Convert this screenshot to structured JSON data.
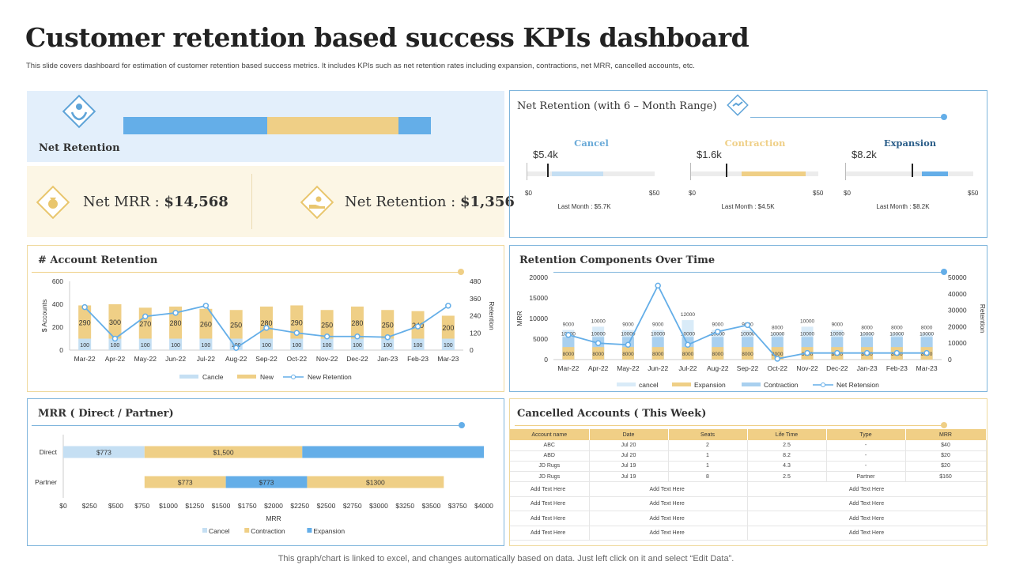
{
  "page": {
    "title": "Customer retention based success KPIs dashboard",
    "subtitle": "This slide covers dashboard for estimation of customer retention based success metrics. It includes KPIs  such as net retention rates including expansion, contractions, net MRR,  cancelled accounts, etc.",
    "footer": "This graph/chart is linked to excel,  and changes automatically based on data. Just left click on it and select “Edit Data”."
  },
  "colors": {
    "blue": "#64aee8",
    "gold": "#efcf86",
    "lightblue": "#c5dff3",
    "panel_blue": "#e3effb",
    "panel_gold": "#fcf6e5",
    "border_blue": "#7fb5dc",
    "border_gold": "#efd99d"
  },
  "net_retention_bar": {
    "label": "Net Retention",
    "segments": [
      {
        "value": 0.44,
        "color": "blue"
      },
      {
        "value": 0.4,
        "color": "gold"
      },
      {
        "value": 0.1,
        "color": "blue"
      }
    ]
  },
  "kpis": {
    "net_mrr_label": "Net MRR :",
    "net_mrr_value": "$14,568",
    "net_ret_label": "Net Retention :",
    "net_ret_value": "$1,356"
  },
  "net_retention_range": {
    "title": "Net Retention (with 6 – Month Range)",
    "gauges": [
      {
        "label": "Cancel",
        "value": "$5.4k",
        "min": "$0",
        "max": "$50",
        "last": "Last Month  : $5.7K",
        "color": "#6aaad8",
        "marker": 0.16,
        "bar_start": 0.2,
        "bar_end": 0.6,
        "bar_color": "#c5dff3"
      },
      {
        "label": "Contraction",
        "value": "$1.6k",
        "min": "$0",
        "max": "$50",
        "last": "Last Month  : $4.5K",
        "color": "#efcf86",
        "marker": 0.28,
        "bar_start": 0.4,
        "bar_end": 0.9,
        "bar_color": "#efcf86"
      },
      {
        "label": "Expansion",
        "value": "$8.2k",
        "min": "$0",
        "max": "$50",
        "last": "Last Month  : $8.2K",
        "color": "#2c5f8a",
        "marker": 0.52,
        "bar_start": 0.6,
        "bar_end": 0.8,
        "bar_color": "#64aee8"
      }
    ]
  },
  "chart_data": [
    {
      "id": "account_retention",
      "type": "bar",
      "title": "# Account Retention",
      "categories": [
        "Mar-22",
        "Apr-22",
        "May-22",
        "Jun-22",
        "Jul-22",
        "Aug-22",
        "Sep-22",
        "Oct-22",
        "Nov-22",
        "Dec-22",
        "Jan-23",
        "Feb-23",
        "Mar-23"
      ],
      "series": [
        {
          "name": "Cancle",
          "values": [
            100,
            100,
            100,
            100,
            100,
            100,
            100,
            100,
            100,
            100,
            100,
            100,
            100
          ],
          "color": "#c5dff3"
        },
        {
          "name": "New",
          "values": [
            290,
            300,
            270,
            280,
            260,
            250,
            280,
            290,
            250,
            280,
            250,
            240,
            200
          ],
          "color": "#efcf86"
        },
        {
          "name": "New Retention",
          "values": [
            300,
            80,
            235,
            260,
            310,
            15,
            155,
            120,
            95,
            95,
            90,
            165,
            310
          ],
          "color": "#64aee8",
          "axis": "right"
        }
      ],
      "ylabel": "$ Accounts",
      "ylabel_right": "Retention",
      "ylim": [
        0,
        600
      ],
      "yticks": [
        0,
        200,
        400,
        600
      ],
      "ylim_right": [
        0,
        480
      ],
      "yticks_right": [
        0,
        120,
        240,
        360,
        480
      ]
    },
    {
      "id": "retention_components",
      "type": "bar",
      "title": "Retention Components Over Time",
      "categories": [
        "Mar-22",
        "Apr-22",
        "May-22",
        "Jun-22",
        "Jul-22",
        "Aug-22",
        "Sep-22",
        "Oct-22",
        "Nov-22",
        "Dec-22",
        "Jan-23",
        "Feb-23",
        "Mar-23"
      ],
      "series": [
        {
          "name": "cancel",
          "values": [
            9000,
            10000,
            9000,
            9000,
            12000,
            9000,
            9000,
            8000,
            10000,
            9000,
            8000,
            8000,
            8000
          ],
          "color": "#d9ebf8"
        },
        {
          "name": "Expansion",
          "values": [
            8000,
            8000,
            8000,
            8000,
            8000,
            8000,
            8000,
            8000,
            8000,
            8000,
            8000,
            8000,
            8000
          ],
          "color": "#efcf86"
        },
        {
          "name": "Contraction",
          "values": [
            10000,
            10000,
            10000,
            10000,
            10000,
            10000,
            10000,
            10000,
            10000,
            10000,
            10000,
            10000,
            10000
          ],
          "color": "#a9d0ef"
        },
        {
          "name": "Net Retension",
          "values": [
            15000,
            10000,
            9000,
            45000,
            9000,
            17000,
            21000,
            500,
            4000,
            4000,
            4000,
            4000,
            4000
          ],
          "color": "#64aee8",
          "axis": "right"
        }
      ],
      "ylabel": "MRR",
      "ylabel_right": "Retention",
      "ylim": [
        0,
        20000
      ],
      "yticks": [
        0,
        5000,
        10000,
        15000,
        20000
      ],
      "ylim_right": [
        0,
        50000
      ],
      "yticks_right": [
        0,
        10000,
        20000,
        30000,
        40000,
        50000
      ]
    },
    {
      "id": "mrr_direct_partner",
      "type": "bar",
      "orientation": "horizontal",
      "title": "MRR ( Direct / Partner)",
      "categories": [
        "Direct",
        "Partner"
      ],
      "segments": [
        [
          {
            "start": 0,
            "end": 773,
            "label": "$773",
            "color": "#c5dff3"
          },
          {
            "start": 773,
            "end": 2273,
            "label": "$1,500",
            "color": "#efcf86"
          },
          {
            "start": 2273,
            "end": 4000,
            "label": "",
            "color": "#64aee8"
          }
        ],
        [
          {
            "start": 773,
            "end": 1546,
            "label": "$773",
            "color": "#efcf86"
          },
          {
            "start": 1546,
            "end": 2319,
            "label": "$773",
            "color": "#64aee8"
          },
          {
            "start": 2319,
            "end": 3619,
            "label": "$1300",
            "color": "#efcf86"
          }
        ]
      ],
      "xlabel": "MRR",
      "xlim": [
        0,
        4000
      ],
      "xticks": [
        "$0",
        "$250",
        "$500",
        "$750",
        "$1000",
        "$1250",
        "$1500",
        "$1750",
        "$2000",
        "$2250",
        "$2500",
        "$2750",
        "$3000",
        "$3250",
        "$3500",
        "$3750",
        "$4000"
      ],
      "legend": [
        {
          "name": "Cancel",
          "color": "#c5dff3"
        },
        {
          "name": "Contraction",
          "color": "#efcf86"
        },
        {
          "name": "Expansion",
          "color": "#64aee8"
        }
      ]
    }
  ],
  "cancelled_accounts": {
    "title": "Cancelled Accounts ( This Week)",
    "headers": [
      "Account name",
      "Date",
      "Seats",
      "Life Time",
      "Type",
      "MRR"
    ],
    "rows": [
      [
        "ABC",
        "Jul 20",
        "2",
        "2.5",
        "-",
        "$40"
      ],
      [
        "ABD",
        "Jul 20",
        "1",
        "8.2",
        "-",
        "$20"
      ],
      [
        "JD Rugs",
        "Jul 19",
        "1",
        "4.3",
        "-",
        "$20"
      ],
      [
        "JD Rugs",
        "Jul 19",
        "8",
        "2.5",
        "Partner",
        "$160"
      ]
    ],
    "placeholder": "Add Text Here"
  }
}
